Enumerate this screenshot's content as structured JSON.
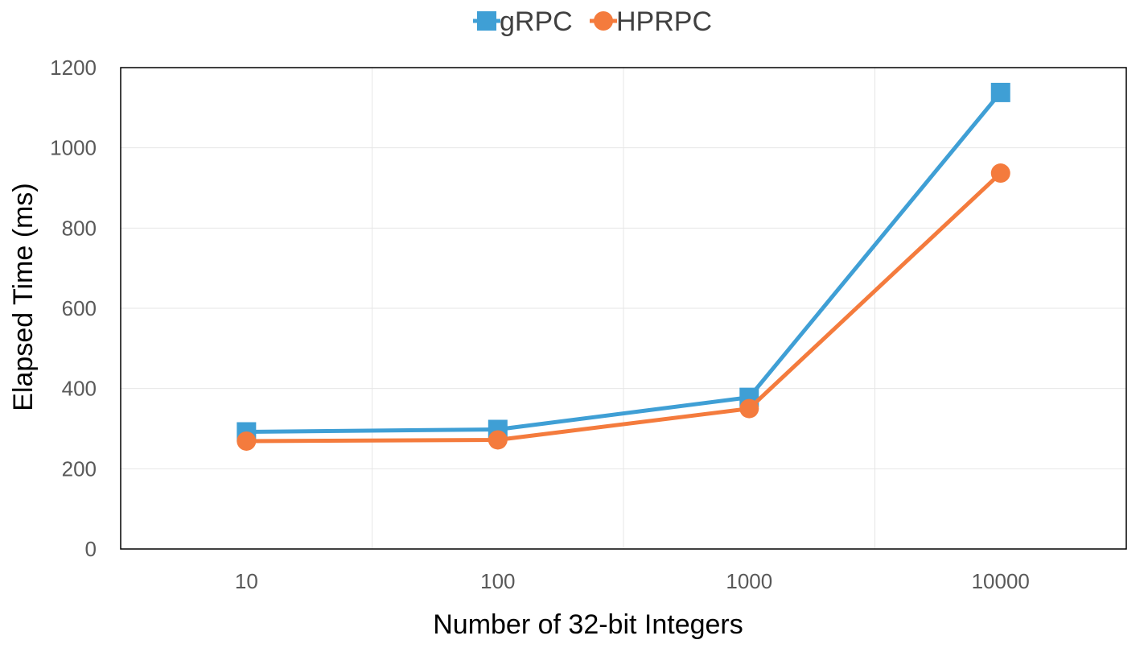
{
  "chart_data": {
    "type": "line",
    "categories": [
      "10",
      "100",
      "1000",
      "10000"
    ],
    "x": [
      10,
      100,
      1000,
      10000
    ],
    "xscale": "log",
    "xlim": [
      3.16,
      31623
    ],
    "ylim": [
      0,
      1200
    ],
    "yticks": [
      "0",
      "200",
      "400",
      "600",
      "800",
      "1000",
      "1200"
    ],
    "xlabel": "Number of 32-bit Integers",
    "ylabel": "Elapsed Time (ms)",
    "grid": true,
    "legend_position": "top-center",
    "series": [
      {
        "name": "gRPC",
        "values": [
          292,
          298,
          378,
          1138
        ],
        "color": "#3f9fd5",
        "marker": "square"
      },
      {
        "name": "HPRPC",
        "values": [
          269,
          272,
          350,
          937
        ],
        "color": "#f47b3d",
        "marker": "circle"
      }
    ]
  }
}
